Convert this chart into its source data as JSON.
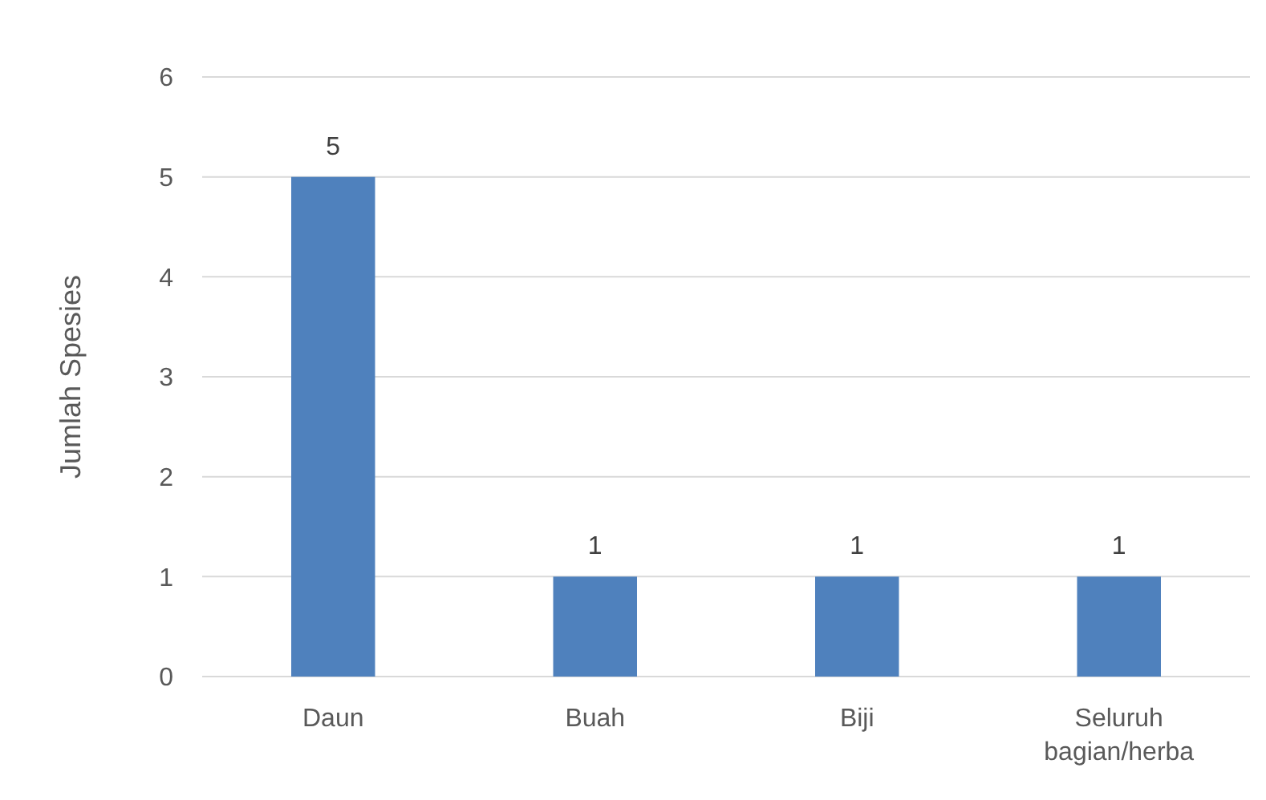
{
  "chart_data": {
    "type": "bar",
    "ylabel": "Jumlah Spesies",
    "categories": [
      "Daun",
      "Buah",
      "Biji",
      "Seluruh bagian/herba"
    ],
    "values": [
      5,
      1,
      1,
      1
    ],
    "color": "#4f81bd",
    "ylim": [
      0,
      6
    ],
    "yticks": [
      0,
      1,
      2,
      3,
      4,
      5,
      6
    ],
    "grid": "y",
    "data_labels": true
  }
}
